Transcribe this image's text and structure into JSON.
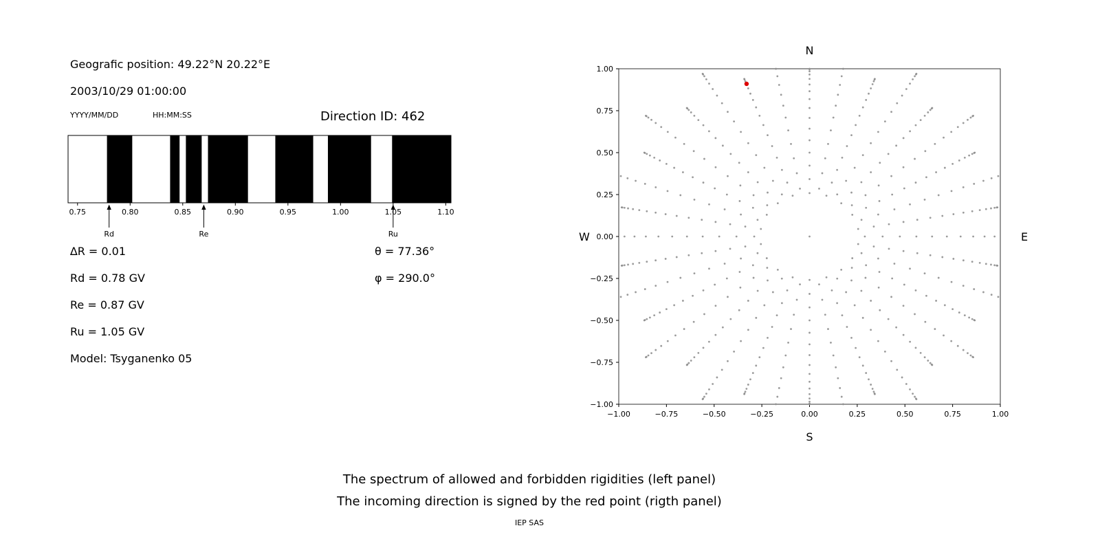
{
  "header": {
    "geo_position": "Geografic position: 49.22°N 20.22°E",
    "datetime": "2003/10/29 01:00:00",
    "date_format": "YYYY/MM/DD",
    "time_format": "HH:MM:SS",
    "direction_id": "Direction ID: 462"
  },
  "params": {
    "delta_r": "∆R = 0.01",
    "rd": "Rd = 0.78 GV",
    "re": "Re = 0.87 GV",
    "ru": "Ru = 1.05 GV",
    "model": "Model: Tsyganenko 05",
    "theta": "θ = 77.36°",
    "phi": "φ = 290.0°"
  },
  "caption": {
    "line1": "The spectrum of allowed and forbidden rigidities (left panel)",
    "line2": "The incoming direction is signed by the red point (rigth panel)",
    "credit": "IEP SAS"
  },
  "chart_data": [
    {
      "type": "bar",
      "subtype": "rigidity-barcode",
      "title": "Spectrum of allowed and forbidden rigidities",
      "xlim": [
        0.741,
        1.105
      ],
      "x_tick_values": [
        0.75,
        0.8,
        0.85,
        0.9,
        0.95,
        1.0,
        1.05,
        1.1
      ],
      "x_tick_labels": [
        "0.75",
        "0.80",
        "0.85",
        "0.90",
        "0.95",
        "1.00",
        "1.05",
        "1.10"
      ],
      "black_bands": [
        [
          0.778,
          0.802
        ],
        [
          0.838,
          0.847
        ],
        [
          0.853,
          0.868
        ],
        [
          0.874,
          0.912
        ],
        [
          0.938,
          0.974
        ],
        [
          0.988,
          1.029
        ],
        [
          1.049,
          1.105
        ]
      ],
      "markers": [
        {
          "label": "Rd",
          "value": 0.78
        },
        {
          "label": "Re",
          "value": 0.87
        },
        {
          "label": "Ru",
          "value": 1.05
        }
      ],
      "bar_color": "#000000",
      "frame_color": "#000000"
    },
    {
      "type": "scatter",
      "subtype": "incoming-direction-skymap",
      "xlim": [
        -1.0,
        1.0
      ],
      "ylim": [
        -1.0,
        1.0
      ],
      "x_ticks": [
        -1.0,
        -0.75,
        -0.5,
        -0.25,
        0.0,
        0.25,
        0.5,
        0.75,
        1.0
      ],
      "y_ticks": [
        -1.0,
        -0.75,
        -0.5,
        -0.25,
        0.0,
        0.25,
        0.5,
        0.75,
        1.0
      ],
      "compass": {
        "top": "N",
        "bottom": "S",
        "left": "W",
        "right": "E"
      },
      "direction_grid": {
        "azimuth_step_deg": 10,
        "zenith_start_deg": 15,
        "zenith_end_deg": 90,
        "zenith_step_deg": 5,
        "long_spoke_scale": 1.12,
        "center_dot": true
      },
      "red_point": {
        "x": -0.33,
        "y": 0.91
      },
      "dot_color": "#8a8a8a",
      "red_color": "#dd0000"
    }
  ]
}
